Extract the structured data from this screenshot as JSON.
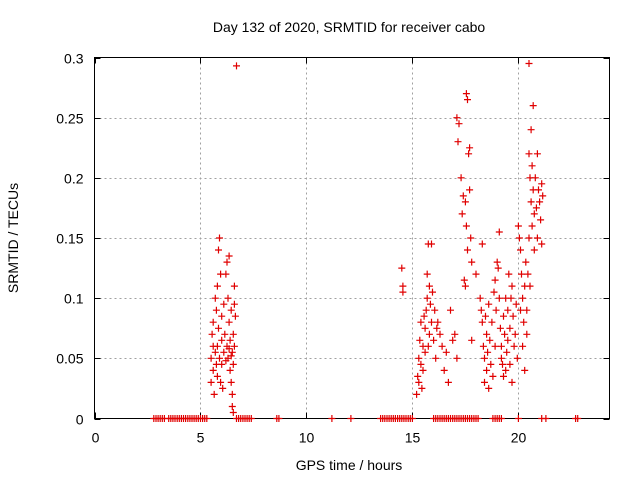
{
  "chart_data": {
    "type": "scatter",
    "title": "Day 132 of 2020, SRMTID for receiver cabo",
    "xlabel": "GPS time / hours",
    "ylabel": "SRMTID / TECUs",
    "xlim": [
      0,
      24.3
    ],
    "ylim": [
      0,
      0.3
    ],
    "xticks": [
      0,
      5,
      10,
      15,
      20
    ],
    "xtick_labels": [
      "0",
      "5",
      "10",
      "15",
      "20"
    ],
    "yticks": [
      0,
      0.05,
      0.1,
      0.15,
      0.2,
      0.25,
      0.3
    ],
    "ytick_labels": [
      "0",
      "0.05",
      "0.1",
      "0.15",
      "0.2",
      "0.25",
      "0.3"
    ],
    "grid": true,
    "marker": "+",
    "series": [
      {
        "name": "SRMTID",
        "color": "#e00000",
        "points": [
          [
            2.8,
            0
          ],
          [
            2.9,
            0
          ],
          [
            3.0,
            0
          ],
          [
            3.1,
            0
          ],
          [
            3.2,
            0
          ],
          [
            3.3,
            0
          ],
          [
            3.5,
            0
          ],
          [
            3.6,
            0
          ],
          [
            3.7,
            0
          ],
          [
            3.8,
            0
          ],
          [
            3.9,
            0
          ],
          [
            4.0,
            0
          ],
          [
            4.1,
            0
          ],
          [
            4.2,
            0
          ],
          [
            4.3,
            0
          ],
          [
            4.4,
            0
          ],
          [
            4.5,
            0
          ],
          [
            4.6,
            0
          ],
          [
            4.7,
            0
          ],
          [
            4.8,
            0
          ],
          [
            4.9,
            0
          ],
          [
            5.0,
            0
          ],
          [
            5.1,
            0
          ],
          [
            5.2,
            0
          ],
          [
            5.3,
            0
          ],
          [
            6.7,
            0
          ],
          [
            6.8,
            0
          ],
          [
            6.9,
            0
          ],
          [
            7.0,
            0
          ],
          [
            7.1,
            0
          ],
          [
            7.2,
            0
          ],
          [
            7.3,
            0
          ],
          [
            7.4,
            0
          ],
          [
            8.6,
            0
          ],
          [
            8.7,
            0
          ],
          [
            11.2,
            0
          ],
          [
            12.1,
            0
          ],
          [
            13.5,
            0
          ],
          [
            13.6,
            0
          ],
          [
            13.7,
            0
          ],
          [
            13.8,
            0
          ],
          [
            13.9,
            0
          ],
          [
            14.0,
            0
          ],
          [
            14.1,
            0
          ],
          [
            14.2,
            0
          ],
          [
            14.3,
            0
          ],
          [
            14.4,
            0
          ],
          [
            14.5,
            0
          ],
          [
            14.6,
            0
          ],
          [
            14.7,
            0
          ],
          [
            14.8,
            0
          ],
          [
            14.9,
            0
          ],
          [
            15.0,
            0
          ],
          [
            16.0,
            0
          ],
          [
            16.1,
            0
          ],
          [
            16.2,
            0
          ],
          [
            16.3,
            0
          ],
          [
            16.4,
            0
          ],
          [
            16.5,
            0
          ],
          [
            16.6,
            0
          ],
          [
            16.7,
            0
          ],
          [
            16.8,
            0
          ],
          [
            16.9,
            0
          ],
          [
            17.0,
            0
          ],
          [
            17.1,
            0
          ],
          [
            17.2,
            0
          ],
          [
            17.3,
            0
          ],
          [
            17.4,
            0
          ],
          [
            17.5,
            0
          ],
          [
            17.6,
            0
          ],
          [
            17.7,
            0
          ],
          [
            17.8,
            0
          ],
          [
            17.9,
            0
          ],
          [
            18.0,
            0
          ],
          [
            18.1,
            0
          ],
          [
            18.8,
            0
          ],
          [
            18.9,
            0
          ],
          [
            19.0,
            0
          ],
          [
            19.1,
            0
          ],
          [
            19.2,
            0
          ],
          [
            20.0,
            0
          ],
          [
            21.1,
            0
          ],
          [
            21.3,
            0
          ],
          [
            22.7,
            0
          ],
          [
            22.8,
            0
          ],
          [
            5.5,
            0.03
          ],
          [
            5.5,
            0.05
          ],
          [
            5.55,
            0.07
          ],
          [
            5.6,
            0.04
          ],
          [
            5.6,
            0.06
          ],
          [
            5.6,
            0.08
          ],
          [
            5.65,
            0.02
          ],
          [
            5.7,
            0.1
          ],
          [
            5.7,
            0.055
          ],
          [
            5.75,
            0.045
          ],
          [
            5.75,
            0.09
          ],
          [
            5.8,
            0.06
          ],
          [
            5.8,
            0.11
          ],
          [
            5.8,
            0.035
          ],
          [
            5.85,
            0.14
          ],
          [
            5.85,
            0.075
          ],
          [
            5.9,
            0.15
          ],
          [
            5.9,
            0.05
          ],
          [
            5.95,
            0.12
          ],
          [
            5.95,
            0.03
          ],
          [
            6.0,
            0.065
          ],
          [
            6.0,
            0.085
          ],
          [
            6.0,
            0.045
          ],
          [
            6.05,
            0.025
          ],
          [
            6.1,
            0.055
          ],
          [
            6.1,
            0.095
          ],
          [
            6.15,
            0.07
          ],
          [
            6.2,
            0.12
          ],
          [
            6.25,
            0.13
          ],
          [
            6.25,
            0.06
          ],
          [
            6.3,
            0.1
          ],
          [
            6.3,
            0.05
          ],
          [
            6.35,
            0.135
          ],
          [
            6.35,
            0.08
          ],
          [
            6.4,
            0.04
          ],
          [
            6.4,
            0.065
          ],
          [
            6.45,
            0.09
          ],
          [
            6.45,
            0.03
          ],
          [
            6.5,
            0.055
          ],
          [
            6.5,
            0.02
          ],
          [
            6.55,
            0.07
          ],
          [
            6.55,
            0.045
          ],
          [
            6.6,
            0.11
          ],
          [
            6.6,
            0.095
          ],
          [
            6.65,
            0.085
          ],
          [
            6.5,
            0.01
          ],
          [
            6.55,
            0.005
          ],
          [
            6.6,
            0.06
          ],
          [
            6.7,
            0.293
          ],
          [
            6.45,
            0.052
          ],
          [
            6.35,
            0.058
          ],
          [
            6.2,
            0.048
          ],
          [
            14.5,
            0.125
          ],
          [
            14.55,
            0.11
          ],
          [
            14.55,
            0.105
          ],
          [
            15.2,
            0.02
          ],
          [
            15.25,
            0.035
          ],
          [
            15.3,
            0.05
          ],
          [
            15.3,
            0.03
          ],
          [
            15.35,
            0.065
          ],
          [
            15.4,
            0.045
          ],
          [
            15.4,
            0.08
          ],
          [
            15.45,
            0.025
          ],
          [
            15.5,
            0.06
          ],
          [
            15.5,
            0.04
          ],
          [
            15.55,
            0.085
          ],
          [
            15.6,
            0.055
          ],
          [
            15.6,
            0.075
          ],
          [
            15.65,
            0.09
          ],
          [
            15.7,
            0.1
          ],
          [
            15.7,
            0.12
          ],
          [
            15.75,
            0.145
          ],
          [
            15.75,
            0.06
          ],
          [
            15.8,
            0.11
          ],
          [
            15.8,
            0.07
          ],
          [
            15.85,
            0.095
          ],
          [
            15.9,
            0.145
          ],
          [
            15.9,
            0.08
          ],
          [
            15.95,
            0.105
          ],
          [
            16.0,
            0.065
          ],
          [
            16.05,
            0.09
          ],
          [
            16.1,
            0.05
          ],
          [
            16.15,
            0.075
          ],
          [
            16.2,
            0.08
          ],
          [
            16.3,
            0.07
          ],
          [
            16.4,
            0.06
          ],
          [
            16.5,
            0.04
          ],
          [
            16.6,
            0.055
          ],
          [
            16.7,
            0.03
          ],
          [
            16.8,
            0.09
          ],
          [
            16.9,
            0.065
          ],
          [
            17.0,
            0.07
          ],
          [
            17.1,
            0.05
          ],
          [
            17.1,
            0.25
          ],
          [
            17.15,
            0.23
          ],
          [
            17.2,
            0.245
          ],
          [
            17.3,
            0.2
          ],
          [
            17.35,
            0.17
          ],
          [
            17.4,
            0.185
          ],
          [
            17.45,
            0.115
          ],
          [
            17.5,
            0.11
          ],
          [
            17.5,
            0.18
          ],
          [
            17.55,
            0.16
          ],
          [
            17.55,
            0.27
          ],
          [
            17.6,
            0.265
          ],
          [
            17.6,
            0.14
          ],
          [
            17.65,
            0.22
          ],
          [
            17.7,
            0.19
          ],
          [
            17.7,
            0.225
          ],
          [
            17.75,
            0.15
          ],
          [
            17.8,
            0.13
          ],
          [
            17.8,
            0.065
          ],
          [
            18.0,
            0.12
          ],
          [
            18.2,
            0.1
          ],
          [
            18.25,
            0.09
          ],
          [
            18.3,
            0.145
          ],
          [
            18.3,
            0.08
          ],
          [
            18.35,
            0.06
          ],
          [
            18.4,
            0.05
          ],
          [
            18.4,
            0.03
          ],
          [
            18.45,
            0.085
          ],
          [
            18.5,
            0.07
          ],
          [
            18.5,
            0.04
          ],
          [
            18.55,
            0.055
          ],
          [
            18.6,
            0.095
          ],
          [
            18.6,
            0.025
          ],
          [
            18.65,
            0.065
          ],
          [
            18.7,
            0.045
          ],
          [
            18.75,
            0.08
          ],
          [
            18.8,
            0.035
          ],
          [
            18.85,
            0.105
          ],
          [
            18.9,
            0.115
          ],
          [
            18.9,
            0.06
          ],
          [
            18.95,
            0.09
          ],
          [
            19.0,
            0.13
          ],
          [
            19.05,
            0.125
          ],
          [
            19.1,
            0.155
          ],
          [
            19.1,
            0.1
          ],
          [
            19.15,
            0.075
          ],
          [
            19.2,
            0.05
          ],
          [
            19.2,
            0.06
          ],
          [
            19.25,
            0.045
          ],
          [
            19.3,
            0.085
          ],
          [
            19.3,
            0.035
          ],
          [
            19.35,
            0.07
          ],
          [
            19.4,
            0.1
          ],
          [
            19.4,
            0.04
          ],
          [
            19.45,
            0.055
          ],
          [
            19.5,
            0.09
          ],
          [
            19.5,
            0.065
          ],
          [
            19.55,
            0.12
          ],
          [
            19.6,
            0.075
          ],
          [
            19.6,
            0.045
          ],
          [
            19.65,
            0.1
          ],
          [
            19.7,
            0.11
          ],
          [
            19.7,
            0.03
          ],
          [
            19.75,
            0.085
          ],
          [
            19.8,
            0.06
          ],
          [
            19.85,
            0.07
          ],
          [
            19.9,
            0.095
          ],
          [
            19.95,
            0.05
          ],
          [
            20.0,
            0.16
          ],
          [
            20.05,
            0.15
          ],
          [
            20.1,
            0.14
          ],
          [
            20.1,
            0.09
          ],
          [
            20.15,
            0.12
          ],
          [
            20.2,
            0.1
          ],
          [
            20.2,
            0.06
          ],
          [
            20.25,
            0.08
          ],
          [
            20.3,
            0.11
          ],
          [
            20.3,
            0.04
          ],
          [
            20.35,
            0.13
          ],
          [
            20.4,
            0.09
          ],
          [
            20.4,
            0.07
          ],
          [
            20.45,
            0.12
          ],
          [
            20.5,
            0.15
          ],
          [
            20.5,
            0.22
          ],
          [
            20.5,
            0.295
          ],
          [
            20.55,
            0.2
          ],
          [
            20.55,
            0.11
          ],
          [
            20.6,
            0.18
          ],
          [
            20.6,
            0.24
          ],
          [
            20.65,
            0.21
          ],
          [
            20.65,
            0.16
          ],
          [
            20.7,
            0.26
          ],
          [
            20.7,
            0.19
          ],
          [
            20.75,
            0.17
          ],
          [
            20.75,
            0.14
          ],
          [
            20.8,
            0.2
          ],
          [
            20.85,
            0.175
          ],
          [
            20.9,
            0.22
          ],
          [
            20.9,
            0.15
          ],
          [
            20.95,
            0.19
          ],
          [
            21.0,
            0.18
          ],
          [
            21.05,
            0.165
          ],
          [
            21.1,
            0.145
          ],
          [
            21.1,
            0.195
          ],
          [
            21.15,
            0.185
          ]
        ]
      }
    ]
  }
}
